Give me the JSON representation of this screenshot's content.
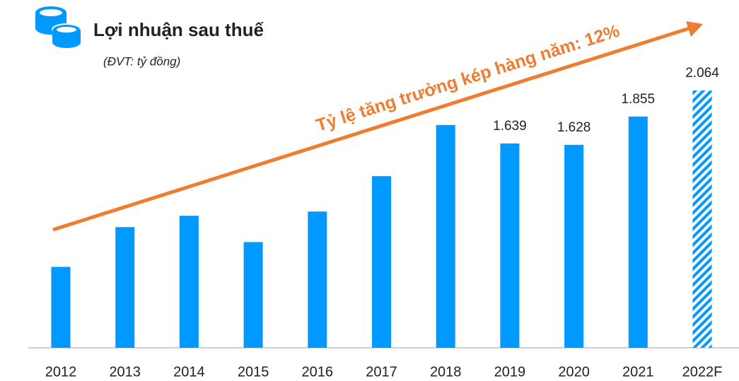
{
  "chart_data": {
    "type": "bar",
    "title": "Lợi nhuận sau thuế",
    "subtitle": "(ĐVT: tỷ đồng)",
    "annotation": "Tỷ lệ tăng trưởng kép hàng năm: 12%",
    "categories": [
      "2012",
      "2013",
      "2014",
      "2015",
      "2016",
      "2017",
      "2018",
      "2019",
      "2020",
      "2021",
      "2022F"
    ],
    "values": [
      649,
      968,
      1059,
      848,
      1093,
      1377,
      1787,
      1639,
      1628,
      1855,
      2064
    ],
    "value_labels": [
      null,
      null,
      null,
      null,
      null,
      null,
      null,
      "1.639",
      "1.628",
      "1.855",
      "2.064"
    ],
    "color": "#0099ff",
    "hatched_categories": [
      "2022F"
    ],
    "annotation_color": "#ed7d31"
  }
}
